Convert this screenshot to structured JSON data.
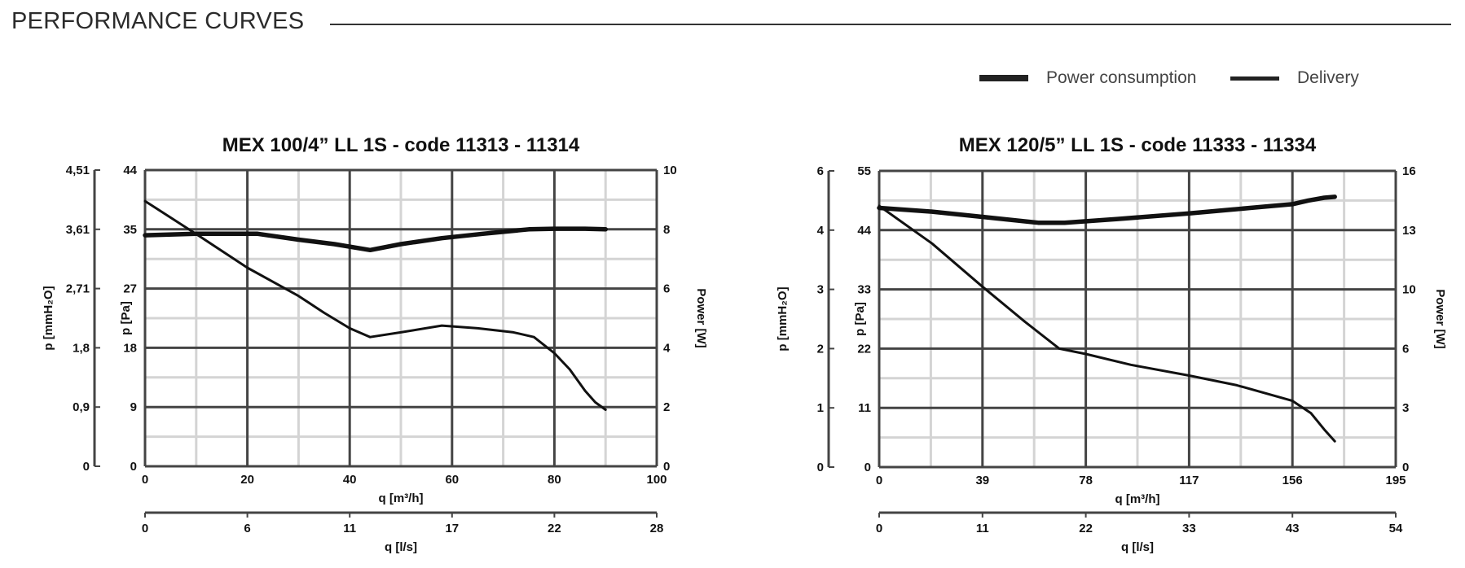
{
  "header": {
    "title": "PERFORMANCE CURVES"
  },
  "legend": [
    {
      "label": "Power consumption",
      "style": "thick"
    },
    {
      "label": "Delivery",
      "style": "thin"
    }
  ],
  "colors": {
    "grid_major": "#444444",
    "grid_minor": "#d4d4d4",
    "curve": "#111111",
    "text": "#111111"
  },
  "chart_data": [
    {
      "type": "line",
      "title": "MEX 100/4” LL 1S - code 11313 - 11314",
      "xlabel": "q [m³/h]",
      "x2label": "q [l/s]",
      "ylabel": "p [Pa]",
      "y2label": "p [mmH₂O]",
      "yrlabel": "Power [W]",
      "xlim": [
        0,
        100
      ],
      "ylim": [
        0,
        44
      ],
      "yrlim": [
        0,
        10
      ],
      "x_ticks": [
        "0",
        "20",
        "40",
        "60",
        "80",
        "100"
      ],
      "y_ticks": [
        "0",
        "9",
        "18",
        "27",
        "35",
        "44"
      ],
      "y2_ticks": [
        "0",
        "0,9",
        "1,8",
        "2,71",
        "3,61",
        "4,51"
      ],
      "yr_ticks": [
        "0",
        "2",
        "4",
        "6",
        "8",
        "10"
      ],
      "x2_ticks": [
        "0",
        "6",
        "11",
        "17",
        "22",
        "28"
      ],
      "series": [
        {
          "name": "Power consumption",
          "axis": "right",
          "x": [
            0,
            10,
            22,
            30,
            37,
            44,
            50,
            58,
            66,
            75,
            80,
            86,
            90
          ],
          "y": [
            7.8,
            7.85,
            7.85,
            7.65,
            7.5,
            7.3,
            7.5,
            7.7,
            7.85,
            8.0,
            8.02,
            8.02,
            8.0
          ]
        },
        {
          "name": "Delivery",
          "axis": "left",
          "x": [
            0,
            10,
            20,
            25,
            30,
            35,
            40,
            44,
            50,
            58,
            65,
            72,
            76,
            80,
            83,
            86,
            88,
            90
          ],
          "y": [
            39.4,
            34.5,
            29.5,
            27.4,
            25.3,
            22.8,
            20.5,
            19.2,
            19.9,
            20.9,
            20.5,
            19.9,
            19.2,
            16.8,
            14.4,
            11.2,
            9.5,
            8.4
          ]
        }
      ]
    },
    {
      "type": "line",
      "title": "MEX 120/5” LL 1S - code 11333 - 11334",
      "xlabel": "q [m³/h]",
      "x2label": "q [l/s]",
      "ylabel": "p [Pa]",
      "y2label": "p [mmH₂O]",
      "yrlabel": "Power [W]",
      "xlim": [
        0,
        195
      ],
      "ylim": [
        0,
        55
      ],
      "yrlim": [
        0,
        16
      ],
      "x_ticks": [
        "0",
        "39",
        "78",
        "117",
        "156",
        "195"
      ],
      "y_ticks": [
        "0",
        "11",
        "22",
        "33",
        "44",
        "55"
      ],
      "y2_ticks": [
        "0",
        "1",
        "2",
        "3",
        "4",
        "6"
      ],
      "yr_ticks": [
        "0",
        "3",
        "6",
        "10",
        "13",
        "16"
      ],
      "x2_ticks": [
        "0",
        "11",
        "22",
        "33",
        "43",
        "54"
      ],
      "series": [
        {
          "name": "Power consumption",
          "axis": "right",
          "x": [
            0,
            20,
            40,
            60,
            70,
            90,
            117,
            140,
            156,
            162,
            168,
            172
          ],
          "y": [
            14.0,
            13.8,
            13.5,
            13.2,
            13.2,
            13.4,
            13.7,
            14.0,
            14.2,
            14.4,
            14.55,
            14.6
          ]
        },
        {
          "name": "Delivery",
          "axis": "left",
          "x": [
            0,
            20,
            39,
            55,
            68,
            78,
            95,
            117,
            135,
            156,
            163,
            168,
            172
          ],
          "y": [
            48.5,
            41.5,
            33.5,
            27.0,
            22.0,
            21.0,
            19.0,
            17.0,
            15.2,
            12.3,
            10.0,
            7.0,
            4.8
          ]
        }
      ]
    }
  ]
}
